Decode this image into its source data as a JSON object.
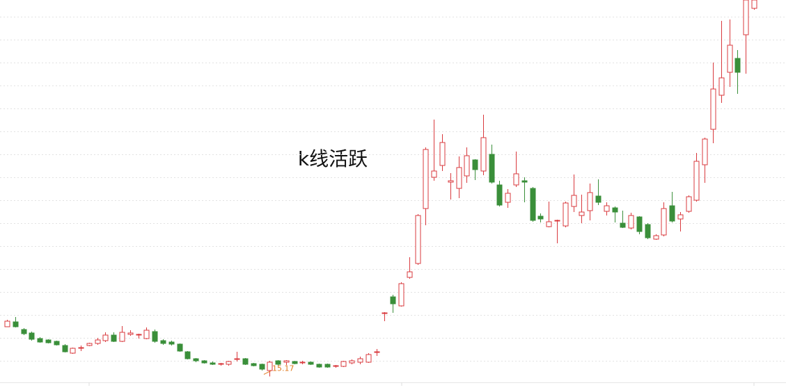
{
  "chart_data": {
    "type": "candlestick",
    "title": "k线活跃",
    "up_color": "#d9393d",
    "down_color": "#3a8f3a",
    "ylim": [
      14.78,
      26.0
    ],
    "ygrid": [
      25.52,
      24.86,
      24.2,
      23.54,
      22.88,
      22.22,
      21.56,
      20.9,
      20.24,
      19.58,
      18.92,
      18.26,
      17.6,
      16.94,
      16.28,
      15.62
    ],
    "ohlc": [
      [
        16.6,
        16.8,
        16.6,
        16.76
      ],
      [
        16.74,
        16.88,
        16.58,
        16.6
      ],
      [
        16.52,
        16.56,
        16.36,
        16.4
      ],
      [
        16.42,
        16.46,
        16.2,
        16.24
      ],
      [
        16.26,
        16.3,
        16.14,
        16.16
      ],
      [
        16.22,
        16.24,
        16.12,
        16.14
      ],
      [
        16.18,
        16.2,
        16.06,
        16.08
      ],
      [
        16.06,
        16.1,
        15.86,
        15.88
      ],
      [
        15.84,
        16.0,
        15.82,
        15.98
      ],
      [
        15.98,
        16.06,
        15.9,
        16.0
      ],
      [
        16.06,
        16.14,
        16.04,
        16.12
      ],
      [
        16.12,
        16.28,
        16.08,
        16.22
      ],
      [
        16.2,
        16.44,
        16.16,
        16.36
      ],
      [
        16.36,
        16.44,
        16.16,
        16.18
      ],
      [
        16.18,
        16.62,
        16.16,
        16.44
      ],
      [
        16.38,
        16.5,
        16.34,
        16.42
      ],
      [
        16.36,
        16.4,
        16.26,
        16.38
      ],
      [
        16.26,
        16.58,
        16.24,
        16.5
      ],
      [
        16.46,
        16.52,
        16.14,
        16.18
      ],
      [
        16.2,
        16.24,
        16.08,
        16.12
      ],
      [
        16.16,
        16.2,
        16.06,
        16.1
      ],
      [
        16.1,
        16.12,
        15.88,
        15.9
      ],
      [
        15.88,
        15.9,
        15.66,
        15.68
      ],
      [
        15.68,
        15.7,
        15.58,
        15.62
      ],
      [
        15.62,
        15.64,
        15.54,
        15.56
      ],
      [
        15.56,
        15.6,
        15.5,
        15.52
      ],
      [
        15.52,
        15.56,
        15.48,
        15.54
      ],
      [
        15.52,
        15.62,
        15.48,
        15.6
      ],
      [
        15.66,
        15.88,
        15.6,
        15.68
      ],
      [
        15.68,
        15.7,
        15.5,
        15.52
      ],
      [
        15.54,
        15.56,
        15.46,
        15.48
      ],
      [
        15.52,
        15.54,
        15.34,
        15.38
      ],
      [
        15.34,
        15.62,
        15.17,
        15.58
      ],
      [
        15.62,
        15.64,
        15.48,
        15.52
      ],
      [
        15.58,
        15.64,
        15.5,
        15.62
      ],
      [
        15.6,
        15.62,
        15.52,
        15.54
      ],
      [
        15.56,
        15.62,
        15.52,
        15.58
      ],
      [
        15.58,
        15.6,
        15.5,
        15.52
      ],
      [
        15.52,
        15.54,
        15.42,
        15.44
      ],
      [
        15.52,
        15.54,
        15.42,
        15.44
      ],
      [
        15.46,
        15.5,
        15.42,
        15.48
      ],
      [
        15.46,
        15.62,
        15.44,
        15.6
      ],
      [
        15.56,
        15.66,
        15.52,
        15.62
      ],
      [
        15.58,
        15.74,
        15.52,
        15.68
      ],
      [
        15.58,
        15.84,
        15.56,
        15.8
      ],
      [
        15.86,
        15.96,
        15.76,
        15.88
      ],
      [
        16.98,
        17.02,
        16.76,
        17.0
      ],
      [
        17.46,
        17.52,
        17.0,
        17.26
      ],
      [
        17.2,
        17.88,
        17.18,
        17.84
      ],
      [
        18.02,
        18.6,
        17.98,
        18.18
      ],
      [
        18.42,
        19.84,
        18.38,
        19.8
      ],
      [
        20.0,
        21.76,
        19.52,
        21.7
      ],
      [
        20.9,
        22.56,
        20.8,
        21.08
      ],
      [
        21.24,
        22.14,
        21.08,
        21.9
      ],
      [
        20.76,
        21.02,
        20.26,
        20.8
      ],
      [
        20.58,
        21.5,
        20.3,
        21.18
      ],
      [
        20.94,
        21.76,
        20.74,
        21.52
      ],
      [
        21.4,
        21.42,
        20.82,
        21.12
      ],
      [
        21.08,
        22.7,
        20.96,
        22.04
      ],
      [
        21.56,
        21.84,
        20.72,
        20.76
      ],
      [
        20.68,
        20.8,
        20.06,
        20.1
      ],
      [
        20.18,
        20.56,
        20.02,
        20.44
      ],
      [
        20.68,
        21.64,
        20.62,
        21.0
      ],
      [
        20.8,
        20.9,
        20.18,
        20.76
      ],
      [
        20.58,
        20.62,
        19.62,
        19.66
      ],
      [
        19.78,
        19.86,
        19.6,
        19.7
      ],
      [
        19.48,
        20.2,
        19.46,
        19.62
      ],
      [
        19.64,
        19.68,
        19.0,
        19.66
      ],
      [
        19.5,
        20.2,
        19.46,
        20.16
      ],
      [
        20.06,
        20.98,
        19.9,
        20.38
      ],
      [
        19.8,
        20.4,
        19.58,
        19.9
      ],
      [
        19.94,
        20.72,
        19.66,
        20.46
      ],
      [
        20.36,
        20.84,
        20.1,
        20.18
      ],
      [
        19.92,
        20.18,
        19.8,
        20.08
      ],
      [
        20.02,
        20.06,
        19.6,
        19.9
      ],
      [
        19.58,
        19.94,
        19.44,
        19.46
      ],
      [
        19.44,
        19.88,
        19.4,
        19.8
      ],
      [
        19.76,
        19.78,
        19.26,
        19.34
      ],
      [
        19.54,
        19.58,
        19.12,
        19.16
      ],
      [
        19.12,
        19.26,
        19.1,
        19.22
      ],
      [
        19.24,
        20.18,
        19.2,
        20.0
      ],
      [
        20.08,
        20.48,
        19.6,
        19.64
      ],
      [
        19.7,
        19.9,
        19.34,
        19.82
      ],
      [
        19.92,
        20.38,
        19.88,
        20.34
      ],
      [
        20.24,
        21.6,
        20.2,
        21.36
      ],
      [
        21.26,
        22.04,
        20.74,
        22.0
      ],
      [
        22.28,
        24.2,
        21.88,
        23.44
      ],
      [
        23.26,
        25.4,
        23.04,
        23.76
      ],
      [
        23.92,
        25.44,
        23.5,
        24.7
      ],
      [
        24.32,
        24.56,
        23.3,
        23.92
      ],
      [
        25.0,
        26.0,
        23.88,
        26.0
      ],
      [
        25.76,
        26.0,
        25.72,
        26.0
      ]
    ]
  }
}
